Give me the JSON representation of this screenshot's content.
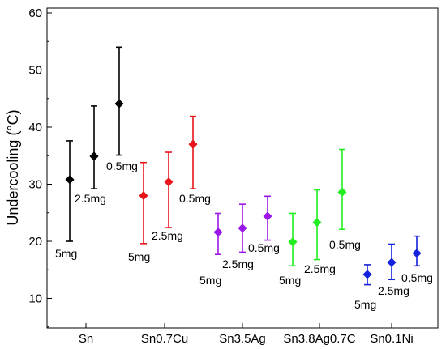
{
  "chart_data": {
    "type": "scatter",
    "title": "",
    "ylabel": "Undercooling (°C)",
    "xlabel": "",
    "ylim": [
      5,
      60
    ],
    "yticks": [
      10,
      20,
      30,
      40,
      50,
      60
    ],
    "grid": false,
    "legend": "none",
    "categories": [
      "Sn",
      "Sn0.7Cu",
      "Sn3.5Ag",
      "Sn3.8Ag0.7C",
      "Sn0.1Ni"
    ],
    "series": [
      {
        "category": "Sn",
        "color": "#000000",
        "points": [
          {
            "label": "5mg",
            "mean": 30.8,
            "upper": 37.6,
            "lower": 20.0
          },
          {
            "label": "2.5mg",
            "mean": 34.9,
            "upper": 43.7,
            "lower": 29.2
          },
          {
            "label": "0.5mg",
            "mean": 44.1,
            "upper": 54.0,
            "lower": 35.1
          }
        ]
      },
      {
        "category": "Sn0.7Cu",
        "color": "#e8151b",
        "points": [
          {
            "label": "5mg",
            "mean": 28.0,
            "upper": 33.8,
            "lower": 19.6
          },
          {
            "label": "2.5mg",
            "mean": 30.4,
            "upper": 35.6,
            "lower": 22.4
          },
          {
            "label": "0.5mg",
            "mean": 37.0,
            "upper": 41.9,
            "lower": 29.2
          }
        ]
      },
      {
        "category": "Sn3.5Ag",
        "color": "#9b17e8",
        "points": [
          {
            "label": "5mg",
            "mean": 21.6,
            "upper": 24.9,
            "lower": 17.7
          },
          {
            "label": "2.5mg",
            "mean": 22.3,
            "upper": 26.5,
            "lower": 18.1
          },
          {
            "label": "0.5mg",
            "mean": 24.4,
            "upper": 27.9,
            "lower": 20.2
          }
        ]
      },
      {
        "category": "Sn3.8Ag0.7C",
        "color": "#22ee22",
        "points": [
          {
            "label": "5mg",
            "mean": 19.9,
            "upper": 24.9,
            "lower": 15.7
          },
          {
            "label": "2.5mg",
            "mean": 23.3,
            "upper": 29.0,
            "lower": 16.8
          },
          {
            "label": "0.5mg",
            "mean": 28.6,
            "upper": 36.1,
            "lower": 22.1
          }
        ]
      },
      {
        "category": "Sn0.1Ni",
        "color": "#1522dd",
        "points": [
          {
            "label": "5mg",
            "mean": 14.2,
            "upper": 15.9,
            "lower": 12.4
          },
          {
            "label": "2.5mg",
            "mean": 16.3,
            "upper": 19.5,
            "lower": 13.3
          },
          {
            "label": "0.5mg",
            "mean": 17.9,
            "upper": 20.9,
            "lower": 15.7
          }
        ]
      }
    ]
  }
}
